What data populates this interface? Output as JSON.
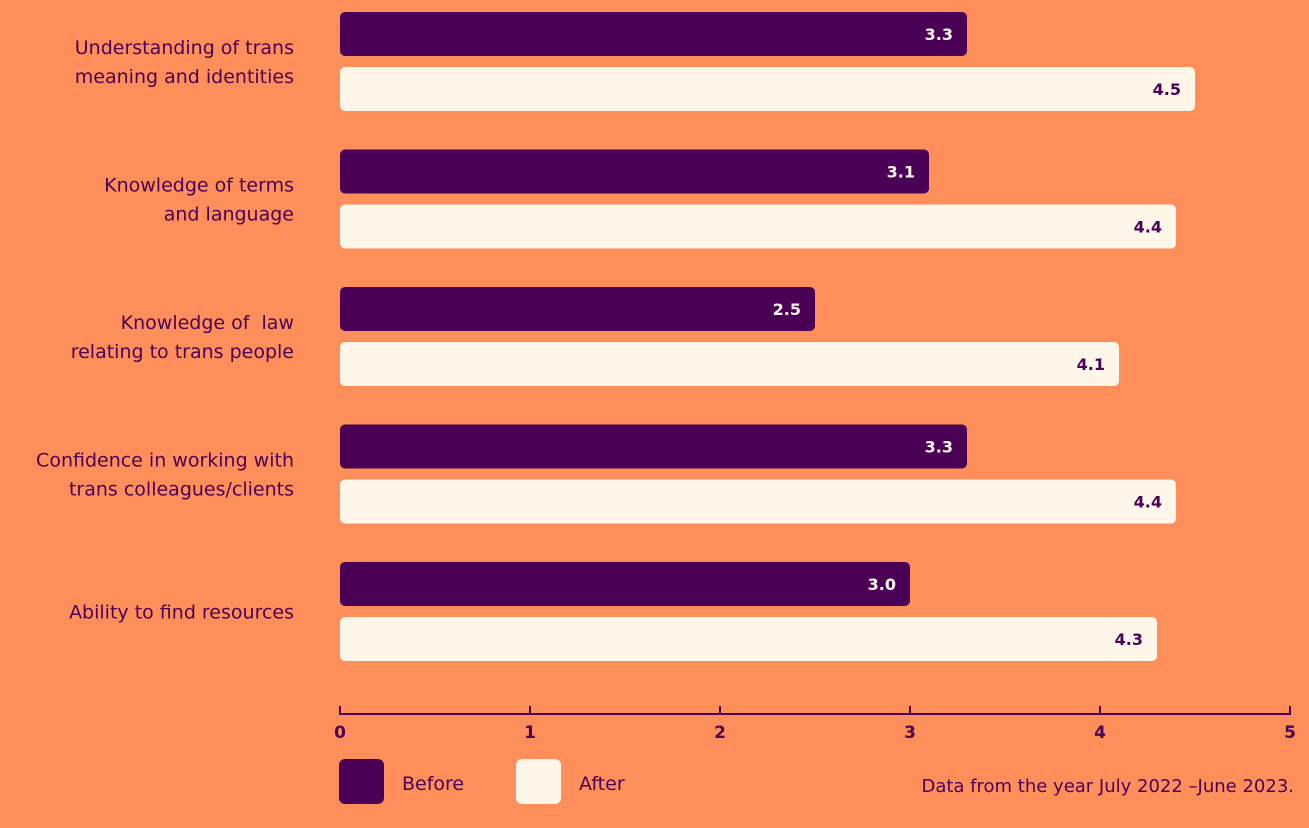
{
  "chart_data": {
    "type": "bar",
    "orientation": "horizontal",
    "categories": [
      [
        "Understanding of trans",
        "meaning and identities"
      ],
      [
        "Knowledge of terms",
        "and language"
      ],
      [
        "Knowledge of  law",
        "relating to trans people"
      ],
      [
        "Confidence in working with",
        "trans colleagues/clients"
      ],
      [
        "Ability to find resources"
      ]
    ],
    "series": [
      {
        "name": "Before",
        "color": "#4A0055",
        "label_color": "#FFF6EA",
        "values": [
          3.3,
          3.1,
          2.5,
          3.3,
          3.0
        ],
        "labels": [
          "3.3",
          "3.1",
          "2.5",
          "3.3",
          "3.0"
        ]
      },
      {
        "name": "After",
        "color": "#FFF6EA",
        "label_color": "#4A0055",
        "values": [
          4.5,
          4.4,
          4.1,
          4.4,
          4.3
        ],
        "labels": [
          "4.5",
          "4.4",
          "4.1",
          "4.4",
          "4.3"
        ]
      }
    ],
    "xlim": [
      0,
      5
    ],
    "ticks": [
      0,
      1,
      2,
      3,
      4,
      5
    ],
    "tick_labels": [
      "0",
      "1",
      "2",
      "3",
      "4",
      "5"
    ],
    "grid": false,
    "legend_position": "bottom-left",
    "axis_color": "#4A0055",
    "background": "#FF8F5A"
  },
  "footnote": "Data from the year July 2022 –June 2023."
}
